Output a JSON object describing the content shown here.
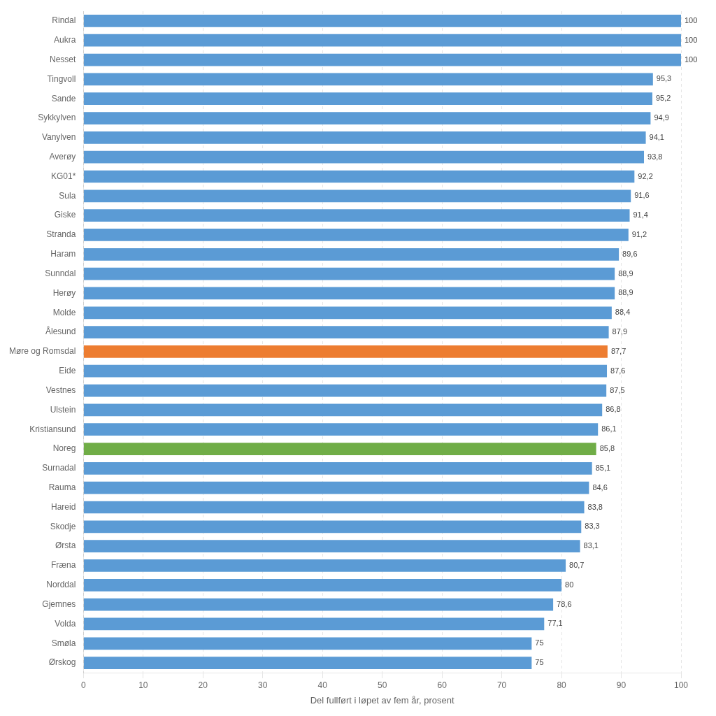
{
  "chart_data": {
    "type": "bar",
    "orientation": "horizontal",
    "categories": [
      "Rindal",
      "Aukra",
      "Nesset",
      "Tingvoll",
      "Sande",
      "Sykkylven",
      "Vanylven",
      "Averøy",
      "KG01*",
      "Sula",
      "Giske",
      "Stranda",
      "Haram",
      "Sunndal",
      "Herøy",
      "Molde",
      "Ålesund",
      "Møre og Romsdal",
      "Eide",
      "Vestnes",
      "Ulstein",
      "Kristiansund",
      "Noreg",
      "Surnadal",
      "Rauma",
      "Hareid",
      "Skodje",
      "Ørsta",
      "Fræna",
      "Norddal",
      "Gjemnes",
      "Volda",
      "Smøla",
      "Ørskog"
    ],
    "values": [
      100,
      100,
      100,
      95.3,
      95.2,
      94.9,
      94.1,
      93.8,
      92.2,
      91.6,
      91.4,
      91.2,
      89.6,
      88.9,
      88.9,
      88.4,
      87.9,
      87.7,
      87.6,
      87.5,
      86.8,
      86.1,
      85.8,
      85.1,
      84.6,
      83.8,
      83.3,
      83.1,
      80.7,
      80,
      78.6,
      77.1,
      75,
      75
    ],
    "value_labels": [
      "100",
      "100",
      "100",
      "95,3",
      "95,2",
      "94,9",
      "94,1",
      "93,8",
      "92,2",
      "91,6",
      "91,4",
      "91,2",
      "89,6",
      "88,9",
      "88,9",
      "88,4",
      "87,9",
      "87,7",
      "87,6",
      "87,5",
      "86,8",
      "86,1",
      "85,8",
      "85,1",
      "84,6",
      "83,8",
      "83,3",
      "83,1",
      "80,7",
      "80",
      "78,6",
      "77,1",
      "75",
      "75"
    ],
    "colors": [
      "#5b9bd5",
      "#5b9bd5",
      "#5b9bd5",
      "#5b9bd5",
      "#5b9bd5",
      "#5b9bd5",
      "#5b9bd5",
      "#5b9bd5",
      "#5b9bd5",
      "#5b9bd5",
      "#5b9bd5",
      "#5b9bd5",
      "#5b9bd5",
      "#5b9bd5",
      "#5b9bd5",
      "#5b9bd5",
      "#5b9bd5",
      "#ed7d31",
      "#5b9bd5",
      "#5b9bd5",
      "#5b9bd5",
      "#5b9bd5",
      "#70ad47",
      "#5b9bd5",
      "#5b9bd5",
      "#5b9bd5",
      "#5b9bd5",
      "#5b9bd5",
      "#5b9bd5",
      "#5b9bd5",
      "#5b9bd5",
      "#5b9bd5",
      "#5b9bd5",
      "#5b9bd5"
    ],
    "xlabel": "Del fullført i løpet av fem år, prosent",
    "xlim": [
      0,
      100
    ],
    "xticks": [
      0,
      10,
      20,
      30,
      40,
      50,
      60,
      70,
      80,
      90,
      100
    ],
    "grid": true,
    "data_labels": true
  }
}
